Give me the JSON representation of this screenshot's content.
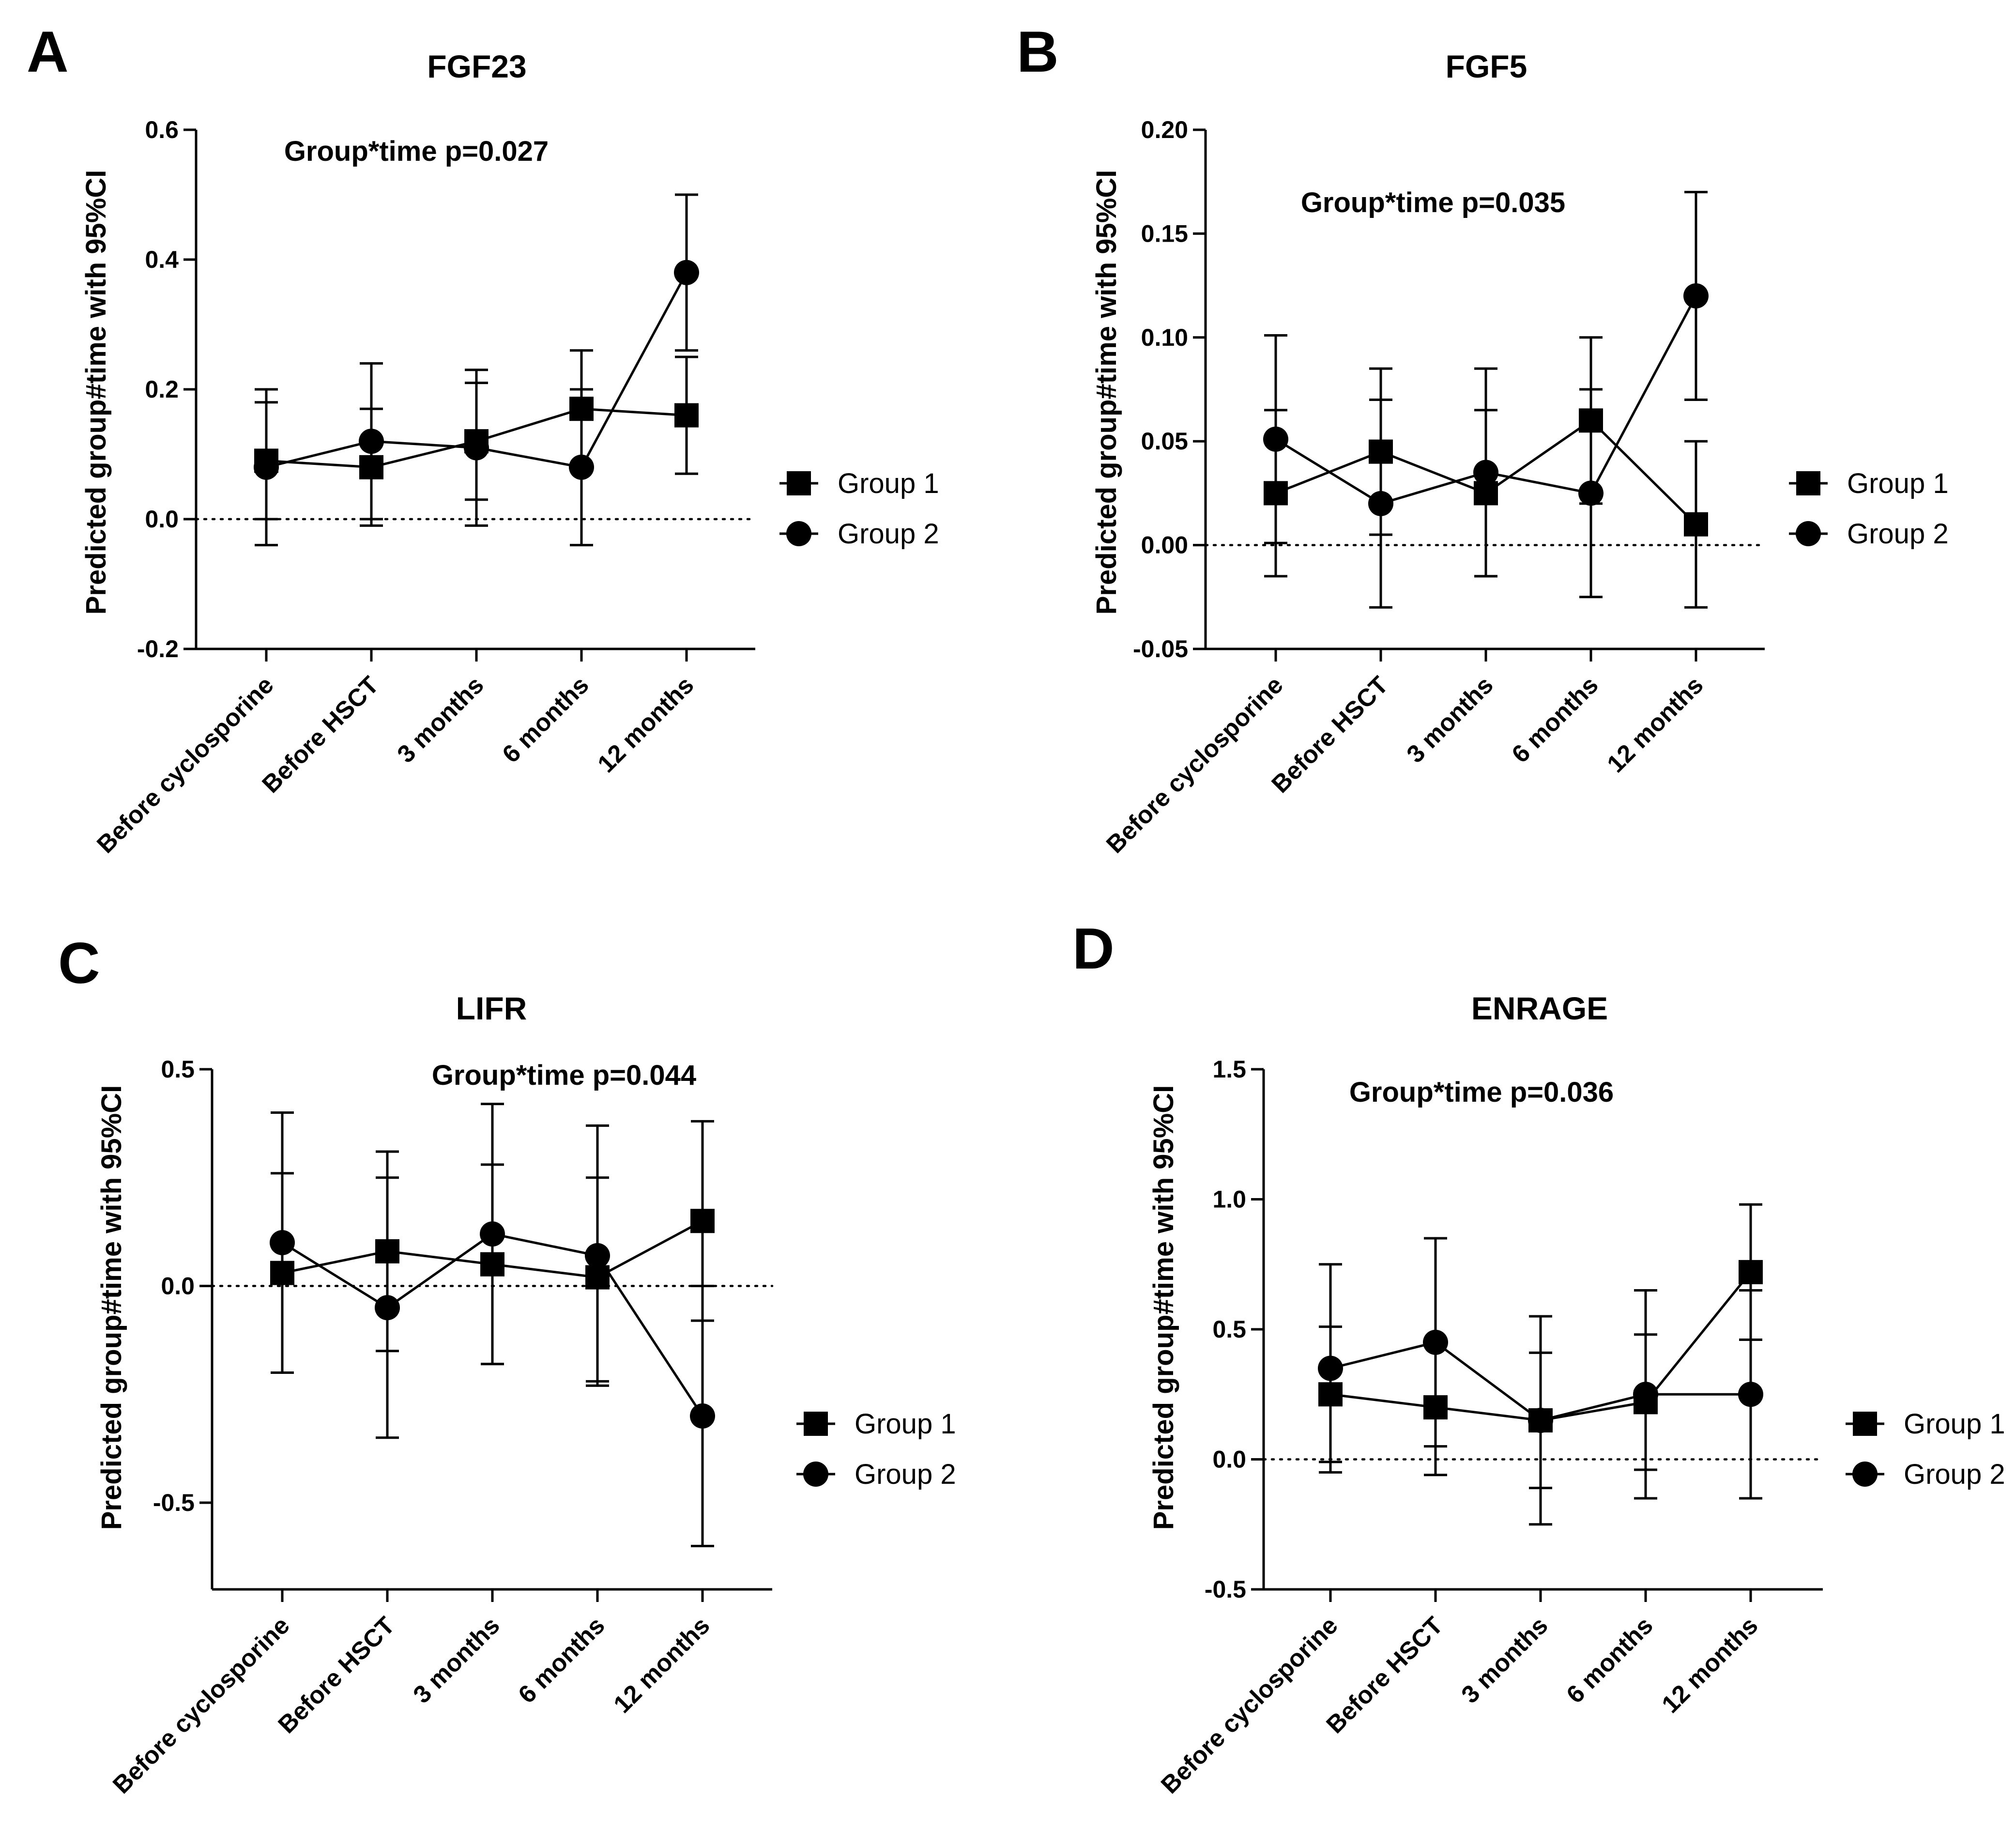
{
  "chart_data": [
    {
      "type": "line",
      "panel": "A",
      "title": "FGF23",
      "annotation": "Group*time p=0.027",
      "xlabel": "",
      "ylabel": "Predicted group#time with 95%CI",
      "categories": [
        "Before cyclosporine",
        "Before HSCT",
        "3 months",
        "6 months",
        "12 months"
      ],
      "ylim": [
        -0.2,
        0.6
      ],
      "yticks": [
        -0.2,
        0.0,
        0.2,
        0.4,
        0.6
      ],
      "ytick_labels": [
        "-0.2",
        "0.0",
        "0.2",
        "0.4",
        "0.6"
      ],
      "reference_line": 0,
      "legend_position": "right",
      "series": [
        {
          "name": "Group 1",
          "marker": "square",
          "values": [
            0.09,
            0.08,
            0.12,
            0.17,
            0.16
          ],
          "lower": [
            0.0,
            -0.01,
            0.03,
            0.08,
            0.07
          ],
          "upper": [
            0.18,
            0.17,
            0.21,
            0.26,
            0.25
          ]
        },
        {
          "name": "Group 2",
          "marker": "circle",
          "values": [
            0.08,
            0.12,
            0.11,
            0.08,
            0.38
          ],
          "lower": [
            -0.04,
            0.0,
            -0.01,
            -0.04,
            0.26
          ],
          "upper": [
            0.2,
            0.24,
            0.23,
            0.2,
            0.5
          ]
        }
      ]
    },
    {
      "type": "line",
      "panel": "B",
      "title": "FGF5",
      "annotation": "Group*time p=0.035",
      "xlabel": "",
      "ylabel": "Predicted group#time with 95%CI",
      "categories": [
        "Before cyclosporine",
        "Before HSCT",
        "3 months",
        "6 months",
        "12 months"
      ],
      "ylim": [
        -0.05,
        0.2
      ],
      "yticks": [
        -0.05,
        0.0,
        0.05,
        0.1,
        0.15,
        0.2
      ],
      "ytick_labels": [
        "-0.05",
        "0.00",
        "0.05",
        "0.10",
        "0.15",
        "0.20"
      ],
      "reference_line": 0,
      "legend_position": "right",
      "series": [
        {
          "name": "Group 1",
          "marker": "square",
          "values": [
            0.025,
            0.045,
            0.025,
            0.06,
            0.01
          ],
          "lower": [
            -0.015,
            0.005,
            -0.015,
            0.02,
            -0.03
          ],
          "upper": [
            0.065,
            0.085,
            0.065,
            0.1,
            0.05
          ]
        },
        {
          "name": "Group 2",
          "marker": "circle",
          "values": [
            0.051,
            0.02,
            0.035,
            0.025,
            0.12
          ],
          "lower": [
            0.001,
            -0.03,
            -0.015,
            -0.025,
            0.07
          ],
          "upper": [
            0.101,
            0.07,
            0.085,
            0.075,
            0.17
          ]
        }
      ]
    },
    {
      "type": "line",
      "panel": "C",
      "title": "LIFR",
      "annotation": "Group*time p=0.044",
      "xlabel": "",
      "ylabel": "Predicted group#time with 95%CI",
      "categories": [
        "Before cyclosporine",
        "Before HSCT",
        "3 months",
        "6 months",
        "12 months"
      ],
      "ylim": [
        -0.7,
        0.5
      ],
      "yticks": [
        -0.5,
        0.0,
        0.5
      ],
      "ytick_labels": [
        "-0.5",
        "0.0",
        "0.5"
      ],
      "reference_line": 0,
      "legend_position": "right",
      "series": [
        {
          "name": "Group 1",
          "marker": "square",
          "values": [
            0.03,
            0.08,
            0.05,
            0.02,
            0.15
          ],
          "lower": [
            -0.2,
            -0.15,
            -0.18,
            -0.22,
            -0.08
          ],
          "upper": [
            0.26,
            0.31,
            0.28,
            0.25,
            0.38
          ]
        },
        {
          "name": "Group 2",
          "marker": "circle",
          "values": [
            0.1,
            -0.05,
            0.12,
            0.07,
            -0.3
          ],
          "lower": [
            -0.2,
            -0.35,
            -0.18,
            -0.23,
            -0.6
          ],
          "upper": [
            0.4,
            0.25,
            0.42,
            0.37,
            0.0
          ]
        }
      ]
    },
    {
      "type": "line",
      "panel": "D",
      "title": "ENRAGE",
      "annotation": "Group*time p=0.036",
      "xlabel": "",
      "ylabel": "Predicted group#time with 95%CI",
      "categories": [
        "Before cyclosporine",
        "Before HSCT",
        "3 months",
        "6 months",
        "12 months"
      ],
      "ylim": [
        -0.5,
        1.5
      ],
      "yticks": [
        -0.5,
        0.0,
        0.5,
        1.0,
        1.5
      ],
      "ytick_labels": [
        "-0.5",
        "0.0",
        "0.5",
        "1.0",
        "1.5"
      ],
      "reference_line": 0,
      "legend_position": "right",
      "series": [
        {
          "name": "Group 1",
          "marker": "square",
          "values": [
            0.25,
            0.2,
            0.15,
            0.22,
            0.72
          ],
          "lower": [
            -0.01,
            -0.06,
            -0.11,
            -0.04,
            0.46
          ],
          "upper": [
            0.51,
            0.46,
            0.41,
            0.48,
            0.98
          ]
        },
        {
          "name": "Group 2",
          "marker": "circle",
          "values": [
            0.35,
            0.45,
            0.15,
            0.25,
            0.25
          ],
          "lower": [
            -0.05,
            0.05,
            -0.25,
            -0.15,
            -0.15
          ],
          "upper": [
            0.75,
            0.85,
            0.55,
            0.65,
            0.65
          ]
        }
      ]
    }
  ]
}
